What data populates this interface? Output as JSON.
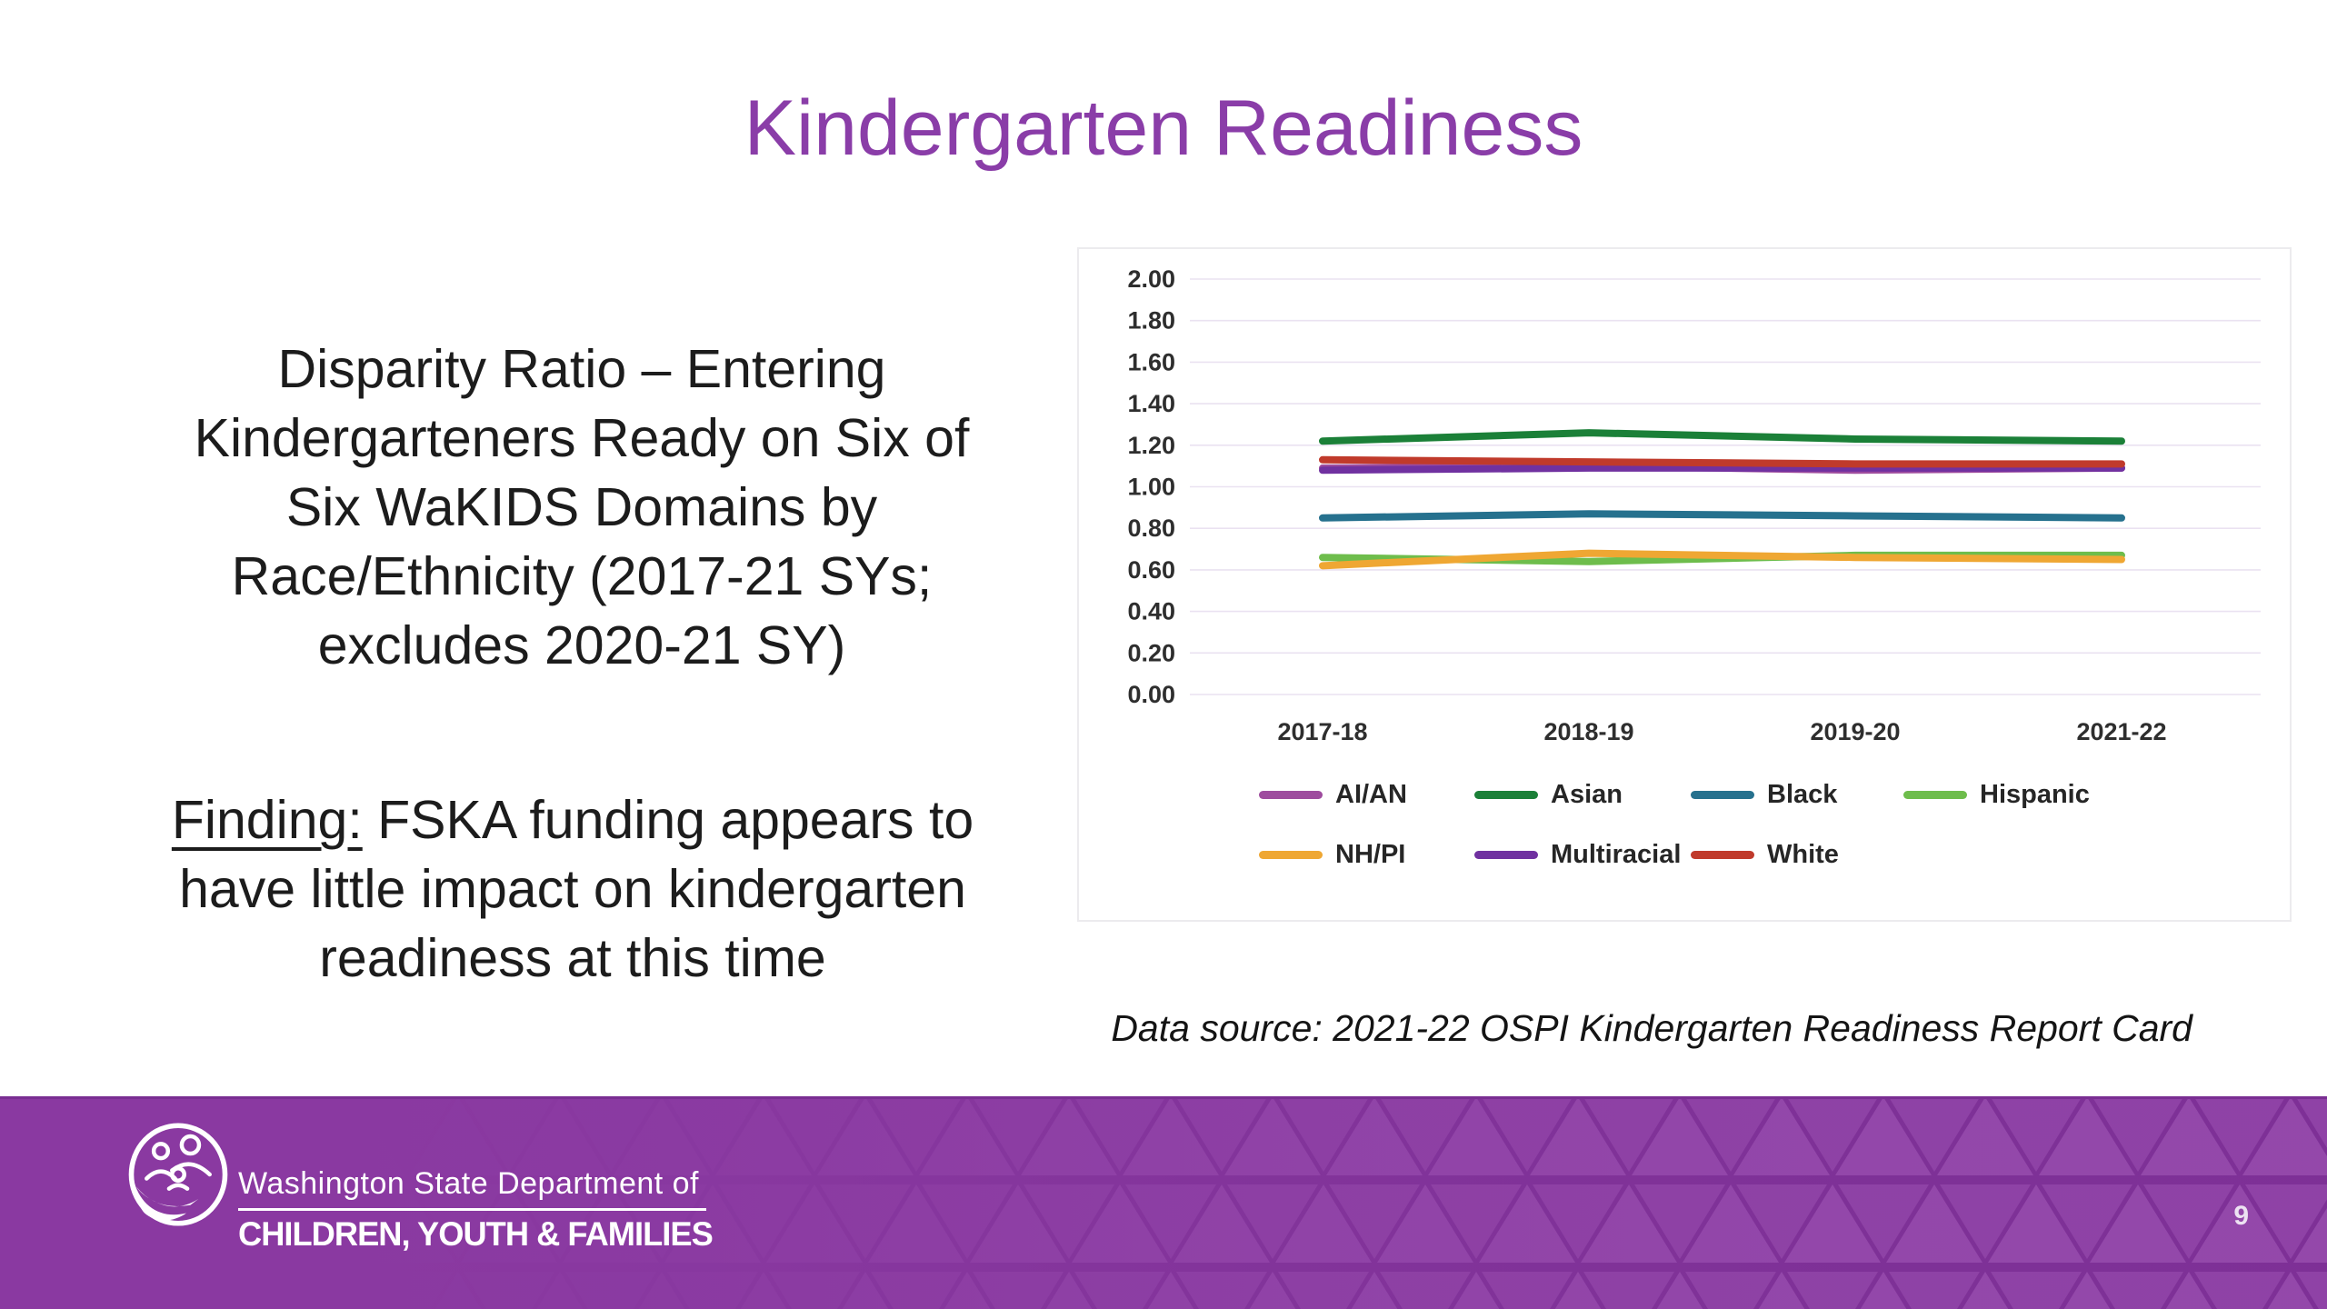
{
  "slide": {
    "title": "Kindergarten Readiness"
  },
  "left_text": {
    "lines": [
      "Disparity Ratio – Entering",
      "Kindergarteners Ready on Six of",
      "Six WaKIDS Domains by",
      "Race/Ethnicity (2017-21 SYs;",
      "excludes 2020-21 SY)"
    ]
  },
  "finding": {
    "label": "Finding:",
    "line1_rest": " FSKA funding appears to",
    "line2": "have little impact on kindergarten",
    "line3": "readiness at this time"
  },
  "data_source": "Data source: 2021-22 OSPI Kindergarten Readiness Report Card",
  "footer": {
    "org_line1": "Washington State Department of",
    "org_line2": "CHILDREN, YOUTH & FAMILIES",
    "page_number": "9",
    "background_color": "#8A39A1"
  },
  "chart_data": {
    "type": "line",
    "title": "",
    "xlabel": "",
    "ylabel": "",
    "categories": [
      "2017-18",
      "2018-19",
      "2019-20",
      "2021-22"
    ],
    "series": [
      {
        "name": "AI/AN",
        "color": "#9E4C9E",
        "values": [
          1.09,
          1.1,
          1.08,
          1.09
        ]
      },
      {
        "name": "Asian",
        "color": "#1B8038",
        "values": [
          1.22,
          1.26,
          1.23,
          1.22
        ]
      },
      {
        "name": "Black",
        "color": "#26718E",
        "values": [
          0.85,
          0.87,
          0.86,
          0.85
        ]
      },
      {
        "name": "Hispanic",
        "color": "#6EBD4C",
        "values": [
          0.66,
          0.64,
          0.67,
          0.67
        ]
      },
      {
        "name": "NH/PI",
        "color": "#EFA733",
        "values": [
          0.62,
          0.68,
          0.66,
          0.65
        ]
      },
      {
        "name": "Multiracial",
        "color": "#7031A0",
        "values": [
          1.08,
          1.09,
          1.09,
          1.09
        ]
      },
      {
        "name": "White",
        "color": "#C03A2B",
        "values": [
          1.13,
          1.12,
          1.11,
          1.11
        ]
      }
    ],
    "ylim": [
      0,
      2
    ],
    "ytick_step": 0.2,
    "ytick_labels": [
      "0.00",
      "0.20",
      "0.40",
      "0.60",
      "0.80",
      "1.00",
      "1.20",
      "1.40",
      "1.60",
      "1.80",
      "2.00"
    ],
    "grid": true,
    "gridline_color": "#EAE2F1",
    "legend_position": "bottom"
  }
}
